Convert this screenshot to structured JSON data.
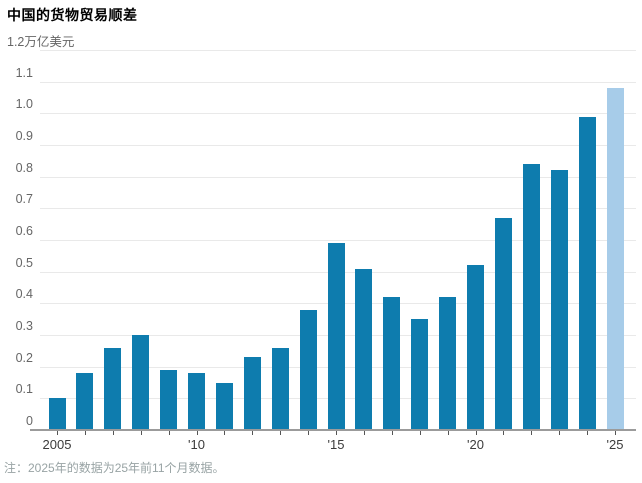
{
  "title": "中国的货物贸易顺差",
  "y_axis_unit_label": "1.2万亿美元",
  "footnote": "注：2025年的数据为25年前11个月数据。",
  "colors": {
    "bar": "#0e7cae",
    "bar_highlight": "#a7cce9",
    "gridline": "#e9e9e9",
    "baseline": "#9b9b9b",
    "tick": "#555555",
    "title_text": "#000000",
    "axis_text": "#666666",
    "x_axis_text": "#3c3c3c",
    "footnote_text": "#98a3a4"
  },
  "chart_data": {
    "type": "bar",
    "title": "中国的货物贸易顺差",
    "ylabel": "万亿美元",
    "unit_top_label": "1.2万亿美元",
    "x": [
      2005,
      2006,
      2007,
      2008,
      2009,
      2010,
      2011,
      2012,
      2013,
      2014,
      2015,
      2016,
      2017,
      2018,
      2019,
      2020,
      2021,
      2022,
      2023,
      2024,
      2025
    ],
    "values": [
      0.1,
      0.18,
      0.26,
      0.3,
      0.19,
      0.18,
      0.15,
      0.23,
      0.26,
      0.38,
      0.59,
      0.51,
      0.42,
      0.35,
      0.42,
      0.52,
      0.67,
      0.84,
      0.82,
      0.99,
      1.08
    ],
    "highlight_index": 20,
    "ylim": [
      0,
      1.2
    ],
    "ytick_step": 0.1,
    "ytick_labels": [
      "0",
      "0.1",
      "0.2",
      "0.3",
      "0.4",
      "0.5",
      "0.6",
      "0.7",
      "0.8",
      "0.9",
      "1.0",
      "1.1"
    ],
    "xticks": [
      {
        "index": 0,
        "label": "2005"
      },
      {
        "index": 5,
        "label": "'10"
      },
      {
        "index": 10,
        "label": "'15"
      },
      {
        "index": 15,
        "label": "'20"
      },
      {
        "index": 20,
        "label": "'25"
      }
    ],
    "grid": "horizontal",
    "legend": null,
    "note": "注：2025年的数据为25年前11个月数据。"
  }
}
